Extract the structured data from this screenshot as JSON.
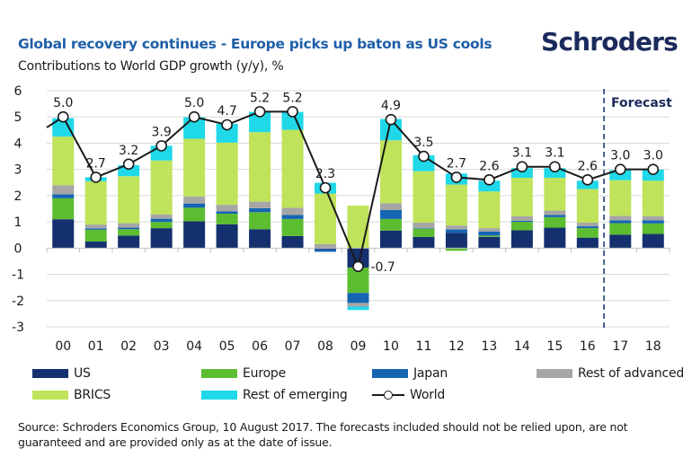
{
  "header": {
    "title": "Global recovery continues - Europe picks up baton as US cools",
    "subtitle": "Contributions to World GDP growth (y/y), %",
    "logo": "Schroders"
  },
  "chart_data": {
    "type": "bar",
    "stacked": true,
    "title": "Global recovery continues - Europe picks up baton as US cools",
    "subtitle": "Contributions to World GDP growth (y/y), %",
    "xlabel": "",
    "ylabel": "",
    "ylim": [
      -3,
      6
    ],
    "yticks": [
      6,
      5,
      4,
      3,
      2,
      1,
      0,
      -1,
      -2,
      -3
    ],
    "grid": true,
    "categories": [
      "00",
      "01",
      "02",
      "03",
      "04",
      "05",
      "06",
      "07",
      "08",
      "09",
      "10",
      "11",
      "12",
      "13",
      "14",
      "15",
      "16",
      "17",
      "18"
    ],
    "forecast_start_index": 17,
    "forecast_label": "Forecast",
    "series": [
      {
        "name": "US",
        "color": "#14306e",
        "values": [
          1.1,
          0.25,
          0.48,
          0.76,
          1.02,
          0.91,
          0.72,
          0.46,
          -0.05,
          -0.74,
          0.67,
          0.43,
          0.58,
          0.43,
          0.68,
          0.78,
          0.4,
          0.51,
          0.54
        ]
      },
      {
        "name": "Europe",
        "color": "#5cbd30",
        "values": [
          0.8,
          0.45,
          0.24,
          0.24,
          0.52,
          0.4,
          0.65,
          0.65,
          0.0,
          -0.97,
          0.44,
          0.31,
          -0.1,
          0.05,
          0.32,
          0.4,
          0.36,
          0.44,
          0.4
        ]
      },
      {
        "name": "Japan",
        "color": "#1565b3",
        "values": [
          0.15,
          0.05,
          0.06,
          0.12,
          0.16,
          0.09,
          0.15,
          0.15,
          -0.09,
          -0.38,
          0.34,
          0.02,
          0.13,
          0.15,
          0.04,
          0.08,
          0.07,
          0.11,
          0.12
        ]
      },
      {
        "name": "Rest of advanced",
        "color": "#a6a6a6",
        "values": [
          0.35,
          0.15,
          0.17,
          0.16,
          0.27,
          0.25,
          0.25,
          0.28,
          0.15,
          -0.14,
          0.26,
          0.21,
          0.15,
          0.13,
          0.18,
          0.17,
          0.14,
          0.17,
          0.16
        ]
      },
      {
        "name": "BRICS",
        "color": "#bfe35a",
        "values": [
          1.85,
          1.65,
          1.79,
          2.06,
          2.2,
          2.37,
          2.65,
          2.97,
          1.93,
          1.62,
          2.4,
          1.96,
          1.56,
          1.4,
          1.46,
          1.25,
          1.28,
          1.36,
          1.35
        ]
      },
      {
        "name": "Rest of emerging",
        "color": "#1fd8e8",
        "values": [
          0.7,
          0.15,
          0.42,
          0.56,
          0.82,
          0.72,
          0.77,
          0.68,
          0.41,
          -0.13,
          0.81,
          0.61,
          0.42,
          0.41,
          0.37,
          0.37,
          0.32,
          0.38,
          0.42
        ]
      }
    ],
    "line": {
      "name": "World",
      "color": "#1a1a1a",
      "values": [
        5.0,
        2.7,
        3.2,
        3.9,
        5.0,
        4.7,
        5.2,
        5.2,
        2.3,
        -0.7,
        4.9,
        3.5,
        2.7,
        2.6,
        3.1,
        3.1,
        2.6,
        3.0,
        3.0
      ],
      "labels": [
        "5.0",
        "2.7",
        "3.2",
        "3.9",
        "5.0",
        "4.7",
        "5.2",
        "5.2",
        "2.3",
        "-0.7",
        "4.9",
        "3.5",
        "2.7",
        "2.6",
        "3.1",
        "3.1",
        "2.6",
        "3.0",
        "3.0"
      ],
      "lead_in_value": 4.6
    },
    "legend_position": "bottom"
  },
  "legend": {
    "items": [
      {
        "label": "US",
        "color": "#14306e",
        "kind": "bar"
      },
      {
        "label": "Europe",
        "color": "#5cbd30",
        "kind": "bar"
      },
      {
        "label": "Japan",
        "color": "#1565b3",
        "kind": "bar"
      },
      {
        "label": "Rest of advanced",
        "color": "#a6a6a6",
        "kind": "bar"
      },
      {
        "label": "BRICS",
        "color": "#bfe35a",
        "kind": "bar"
      },
      {
        "label": "Rest of emerging",
        "color": "#1fd8e8",
        "kind": "bar"
      },
      {
        "label": "World",
        "kind": "line"
      }
    ]
  },
  "source": "Source: Schroders Economics Group, 10 August 2017. The forecasts included should not be relied upon, are not guaranteed and are provided only as at the date of issue."
}
